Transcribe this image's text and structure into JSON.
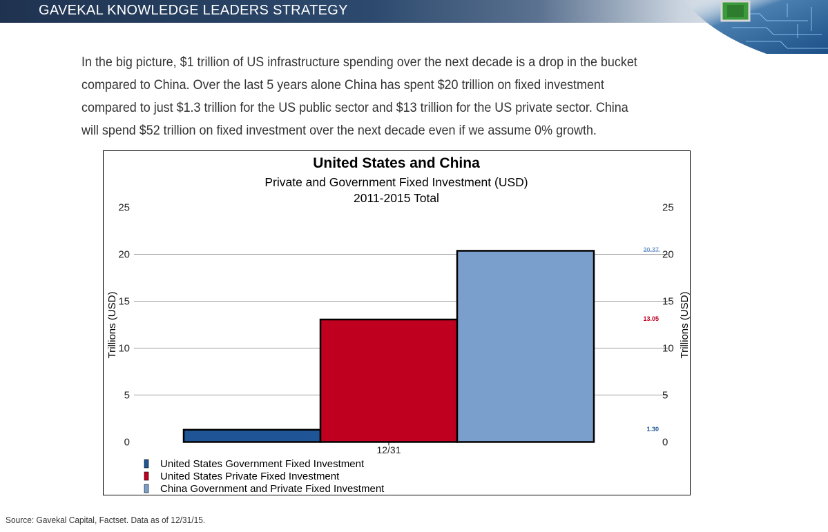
{
  "header": {
    "title": "GAVEKAL KNOWLEDGE LEADERS STRATEGY"
  },
  "intro_lines": [
    "In the big picture, $1 trillion of US infrastructure spending over the next decade is a drop in the bucket",
    "compared to China. Over the last 5 years alone China has spent $20 trillion on fixed investment",
    "compared to just $1.3 trillion for the US public sector and $13 trillion for the US private sector. China",
    "will spend $52 trillion on fixed investment over the next decade even if we assume 0% growth."
  ],
  "chart_data": {
    "type": "bar",
    "title": "United States and China",
    "subtitle": "Private and Government Fixed Investment (USD)",
    "subtitle2": "2011-2015 Total",
    "categories": [
      "12/31"
    ],
    "ylabel": "Trillions (USD)",
    "ylabel_right": "Trillions (USD)",
    "ylim": [
      0,
      25
    ],
    "yticks": [
      "0",
      "5",
      "10",
      "15",
      "20",
      "25"
    ],
    "grid": true,
    "legend_position": "bottom-left",
    "series": [
      {
        "name": "United States Government Fixed Investment",
        "values": [
          1.3
        ],
        "label": "1.30",
        "color": "#1f5596"
      },
      {
        "name": "United States Private Fixed Investment",
        "values": [
          13.05
        ],
        "label": "13.05",
        "color": "#c0001f"
      },
      {
        "name": "China Government and Private Fixed Investment",
        "values": [
          20.37
        ],
        "label": "20.37",
        "color": "#7a9fcc"
      }
    ]
  },
  "footer": {
    "source": "Source: Gavekal Capital, Factset. Data as of 12/31/15."
  }
}
